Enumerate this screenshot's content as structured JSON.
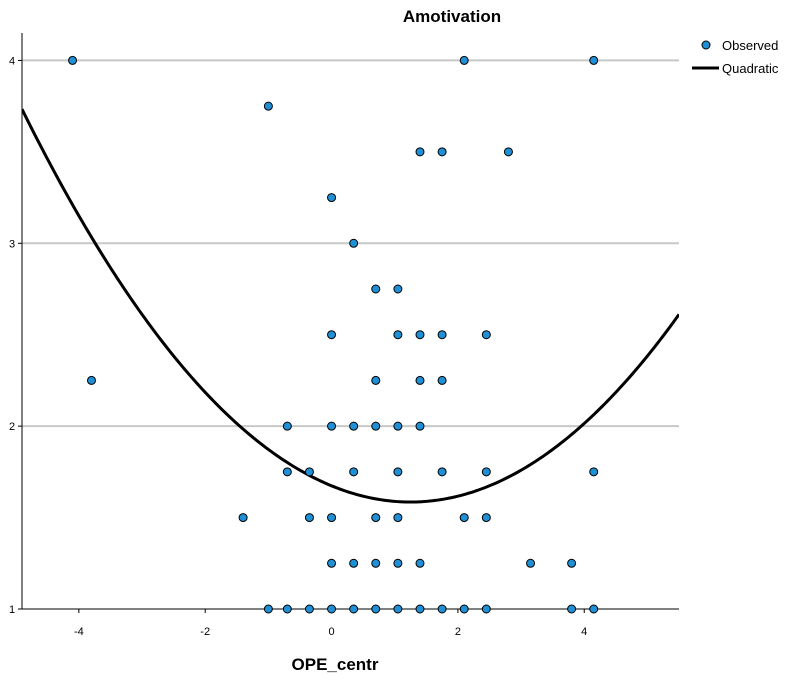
{
  "chart_data": {
    "type": "scatter",
    "title": "Amotivation",
    "xlabel": "OPE_centr",
    "ylabel": "",
    "xlim": [
      -4.9,
      5.5
    ],
    "ylim": [
      1,
      4.15
    ],
    "x_ticks": [
      -4,
      -2,
      0,
      2,
      4
    ],
    "y_ticks": [
      1,
      2,
      3,
      4
    ],
    "x_tick_labels": [
      "-4",
      "-2",
      "0",
      "2",
      "4"
    ],
    "y_tick_labels": [
      "1",
      "2",
      "3",
      "4"
    ],
    "grid": "horizontal",
    "legend_position": "top-right",
    "colors": {
      "point_fill": "#1f8fd6",
      "point_stroke": "#000000",
      "curve": "#000000",
      "grid": "#c8c8c8",
      "axis": "#000000"
    },
    "series": [
      {
        "name": "Observed",
        "kind": "points",
        "points": [
          [
            -4.1,
            4.0
          ],
          [
            2.1,
            4.0
          ],
          [
            4.15,
            4.0
          ],
          [
            -1.0,
            3.75
          ],
          [
            1.4,
            3.5
          ],
          [
            1.75,
            3.5
          ],
          [
            2.8,
            3.5
          ],
          [
            0.0,
            3.25
          ],
          [
            0.35,
            3.0
          ],
          [
            0.7,
            2.75
          ],
          [
            1.05,
            2.75
          ],
          [
            0.0,
            2.5
          ],
          [
            1.05,
            2.5
          ],
          [
            1.4,
            2.5
          ],
          [
            1.75,
            2.5
          ],
          [
            2.45,
            2.5
          ],
          [
            -3.8,
            2.25
          ],
          [
            0.7,
            2.25
          ],
          [
            1.4,
            2.25
          ],
          [
            1.75,
            2.25
          ],
          [
            -0.7,
            2.0
          ],
          [
            0.0,
            2.0
          ],
          [
            0.35,
            2.0
          ],
          [
            0.7,
            2.0
          ],
          [
            1.05,
            2.0
          ],
          [
            1.4,
            2.0
          ],
          [
            -0.7,
            1.75
          ],
          [
            -0.35,
            1.75
          ],
          [
            0.35,
            1.75
          ],
          [
            1.05,
            1.75
          ],
          [
            1.75,
            1.75
          ],
          [
            2.45,
            1.75
          ],
          [
            4.15,
            1.75
          ],
          [
            -1.4,
            1.5
          ],
          [
            -0.35,
            1.5
          ],
          [
            0.0,
            1.5
          ],
          [
            0.7,
            1.5
          ],
          [
            1.05,
            1.5
          ],
          [
            2.1,
            1.5
          ],
          [
            2.45,
            1.5
          ],
          [
            0.0,
            1.25
          ],
          [
            0.35,
            1.25
          ],
          [
            0.7,
            1.25
          ],
          [
            1.05,
            1.25
          ],
          [
            1.4,
            1.25
          ],
          [
            3.15,
            1.25
          ],
          [
            3.8,
            1.25
          ],
          [
            -1.0,
            1.0
          ],
          [
            -0.7,
            1.0
          ],
          [
            -0.35,
            1.0
          ],
          [
            0.0,
            1.0
          ],
          [
            0.35,
            1.0
          ],
          [
            0.7,
            1.0
          ],
          [
            1.05,
            1.0
          ],
          [
            1.4,
            1.0
          ],
          [
            1.75,
            1.0
          ],
          [
            2.1,
            1.0
          ],
          [
            2.45,
            1.0
          ],
          [
            3.8,
            1.0
          ],
          [
            4.15,
            1.0
          ]
        ]
      },
      {
        "name": "Quadratic",
        "kind": "curve",
        "equation": "y = a*(x - h)^2 + k",
        "coefficients": {
          "a": 0.0568,
          "h": 1.25,
          "k": 1.585
        }
      }
    ]
  }
}
